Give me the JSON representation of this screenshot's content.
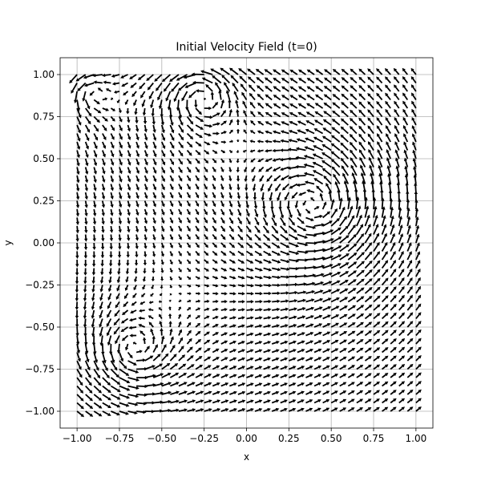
{
  "chart_data": {
    "type": "quiver",
    "title": "Initial Velocity Field (t=0)",
    "xlabel": "x",
    "ylabel": "y",
    "xlim": [
      -1.1,
      1.1
    ],
    "ylim": [
      -1.1,
      1.1
    ],
    "xticks": [
      -1.0,
      -0.75,
      -0.5,
      -0.25,
      0.0,
      0.25,
      0.5,
      0.75,
      1.0
    ],
    "yticks": [
      -1.0,
      -0.75,
      -0.5,
      -0.25,
      0.0,
      0.25,
      0.5,
      0.75,
      1.0
    ],
    "xtick_labels": [
      "−1.00",
      "−0.75",
      "−0.50",
      "−0.25",
      "0.00",
      "0.25",
      "0.50",
      "0.75",
      "1.00"
    ],
    "ytick_labels": [
      "−1.00",
      "−0.75",
      "−0.50",
      "−0.25",
      "0.00",
      "0.25",
      "0.50",
      "0.75",
      "1.00"
    ],
    "grid": true,
    "aspect": "equal",
    "arrow_color": "#000000",
    "grid_points": 41,
    "vortices": [
      {
        "x": -0.26,
        "y": 0.88,
        "strength": 0.9,
        "core": 0.12
      },
      {
        "x": 0.42,
        "y": 0.22,
        "strength": 1.6,
        "core": 0.2
      },
      {
        "x": -0.68,
        "y": -0.65,
        "strength": 0.9,
        "core": 0.14
      },
      {
        "x": -0.92,
        "y": 0.9,
        "strength": 0.45,
        "core": 0.08
      }
    ]
  }
}
